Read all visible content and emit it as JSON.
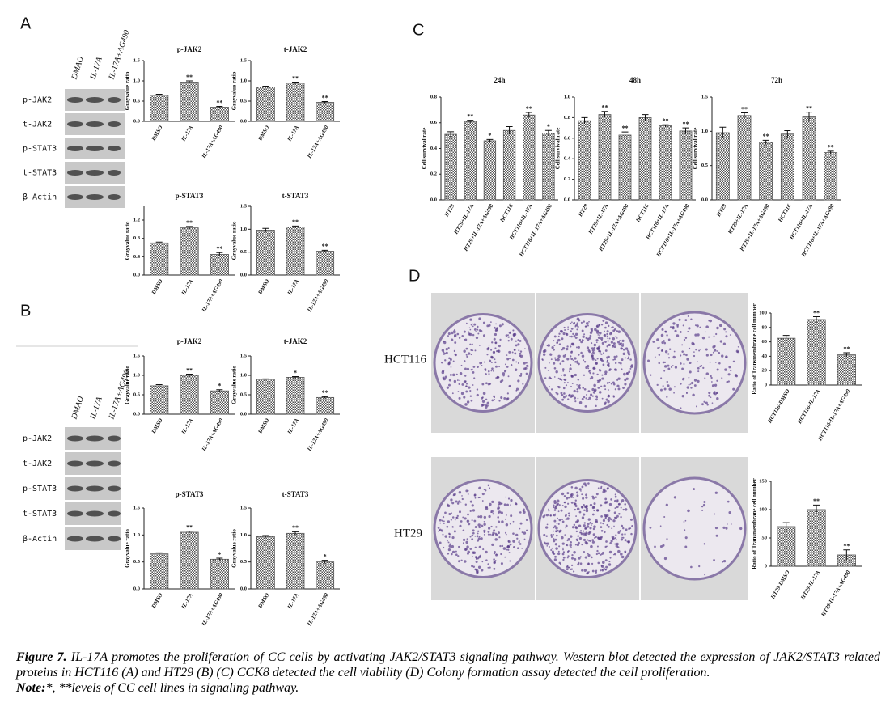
{
  "panel_labels": [
    "A",
    "B",
    "C",
    "D"
  ],
  "blots": [
    {
      "lanes": [
        "DMAO",
        "IL-17A",
        "IL-17A+AG490"
      ],
      "rows": [
        "p-JAK2",
        "t-JAK2",
        "p-STAT3",
        "t-STAT3",
        "β-Actin"
      ]
    },
    {
      "lanes": [
        "DMAO",
        "IL-17A",
        "IL-17A+AG490"
      ],
      "rows": [
        "p-JAK2",
        "t-JAK2",
        "p-STAT3",
        "t-STAT3",
        "β-Actin"
      ]
    }
  ],
  "colony_rows": [
    "HCT116",
    "HT29"
  ],
  "caption": {
    "label": "Figure 7.",
    "text": "IL-17A promotes the proliferation of CC cells by activating JAK2/STAT3 signaling pathway. Western blot detected the expression of JAK2/STAT3 related proteins in HCT116 (A) and HT29 (B) (C) CCK8 detected the cell viability (D) Colony formation assay detected the cell proliferation.",
    "note_label": "Note:",
    "note_text": "*, **levels of CC cell lines in signaling pathway."
  },
  "chart_data": [
    {
      "type": "bar",
      "title": "p-JAK2",
      "y_label": "Grayvalue ratio",
      "categories": [
        "DMSO",
        "IL-17A",
        "IL-17A+AG490"
      ],
      "values": [
        0.65,
        0.97,
        0.35
      ],
      "errors": [
        0.02,
        0.03,
        0.02
      ],
      "significance": [
        null,
        "**",
        "**"
      ],
      "color": "#555555",
      "ylim": [
        0,
        1.5
      ],
      "yticks": [
        {
          "value": 0,
          "label": "0.0"
        },
        {
          "value": 0.5,
          "label": "0.5"
        },
        {
          "value": 1,
          "label": "1.0"
        },
        {
          "value": 1.5,
          "label": "1.5"
        }
      ]
    },
    {
      "type": "bar",
      "title": "t-JAK2",
      "y_label": "Grayvalue ratio",
      "categories": [
        "DMSO",
        "IL-17A",
        "IL-17A+AG490"
      ],
      "values": [
        0.85,
        0.95,
        0.47
      ],
      "errors": [
        0.02,
        0.02,
        0.02
      ],
      "significance": [
        null,
        "**",
        "**"
      ],
      "color": "#555555",
      "ylim": [
        0,
        1.5
      ],
      "yticks": [
        {
          "value": 0,
          "label": "0.0"
        },
        {
          "value": 0.5,
          "label": "0.5"
        },
        {
          "value": 1,
          "label": "1.0"
        },
        {
          "value": 1.5,
          "label": "1.5"
        }
      ]
    },
    {
      "type": "bar",
      "title": "p-STAT3",
      "y_label": "Grayvalue ratio",
      "categories": [
        "DMSO",
        "IL-17A",
        "IL-17A+AG490"
      ],
      "values": [
        0.7,
        1.03,
        0.45
      ],
      "errors": [
        0.02,
        0.03,
        0.04
      ],
      "significance": [
        null,
        "**",
        "**"
      ],
      "color": "#555555",
      "ylim": [
        0,
        1.5
      ],
      "yticks": [
        {
          "value": 0,
          "label": "0.0"
        },
        {
          "value": 0.4,
          "label": "0.4"
        },
        {
          "value": 0.8,
          "label": "0.8"
        },
        {
          "value": 1.2,
          "label": "1.2"
        }
      ]
    },
    {
      "type": "bar",
      "title": "t-STAT3",
      "y_label": "Grayvalue ratio",
      "categories": [
        "DMSO",
        "IL-17A",
        "IL-17A+AG490"
      ],
      "values": [
        0.98,
        1.05,
        0.52
      ],
      "errors": [
        0.04,
        0.02,
        0.02
      ],
      "significance": [
        null,
        "**",
        "**"
      ],
      "color": "#555555",
      "ylim": [
        0,
        1.5
      ],
      "yticks": [
        {
          "value": 0,
          "label": "0.0"
        },
        {
          "value": 0.5,
          "label": "0.5"
        },
        {
          "value": 1,
          "label": "1.0"
        },
        {
          "value": 1.5,
          "label": "1.5"
        }
      ]
    },
    {
      "type": "bar",
      "title": "p-JAK2",
      "y_label": "Grayvalue ratio",
      "categories": [
        "DMSO",
        "IL-17A",
        "IL-17A+AG490"
      ],
      "values": [
        0.73,
        1.0,
        0.6
      ],
      "errors": [
        0.03,
        0.03,
        0.03
      ],
      "significance": [
        null,
        "**",
        "*"
      ],
      "color": "#555555",
      "ylim": [
        0,
        1.5
      ],
      "yticks": [
        {
          "value": 0,
          "label": "0.0"
        },
        {
          "value": 0.5,
          "label": "0.5"
        },
        {
          "value": 1,
          "label": "1.0"
        },
        {
          "value": 1.5,
          "label": "1.5"
        }
      ]
    },
    {
      "type": "bar",
      "title": "t-JAK2",
      "y_label": "Grayvalue ratio",
      "categories": [
        "DMSO",
        "IL-17A",
        "IL-17A+AG490"
      ],
      "values": [
        0.9,
        0.95,
        0.43
      ],
      "errors": [
        0.01,
        0.02,
        0.02
      ],
      "significance": [
        null,
        "*",
        "**"
      ],
      "color": "#555555",
      "ylim": [
        0,
        1.5
      ],
      "yticks": [
        {
          "value": 0,
          "label": "0.0"
        },
        {
          "value": 0.5,
          "label": "0.5"
        },
        {
          "value": 1,
          "label": "1.0"
        },
        {
          "value": 1.5,
          "label": "1.5"
        }
      ]
    },
    {
      "type": "bar",
      "title": "p-STAT3",
      "y_label": "Grayvalue ratio",
      "categories": [
        "DMSO",
        "IL-17A",
        "IL-17A+AG490"
      ],
      "values": [
        0.65,
        1.05,
        0.55
      ],
      "errors": [
        0.02,
        0.02,
        0.02
      ],
      "significance": [
        null,
        "**",
        "*"
      ],
      "color": "#555555",
      "ylim": [
        0,
        1.5
      ],
      "yticks": [
        {
          "value": 0,
          "label": "0.0"
        },
        {
          "value": 0.5,
          "label": "0.5"
        },
        {
          "value": 1,
          "label": "1.0"
        },
        {
          "value": 1.5,
          "label": "1.5"
        }
      ]
    },
    {
      "type": "bar",
      "title": "t-STAT3",
      "y_label": "Grayvalue ratio",
      "categories": [
        "DMSO",
        "IL-17A",
        "IL-17A+AG490"
      ],
      "values": [
        0.97,
        1.03,
        0.5
      ],
      "errors": [
        0.02,
        0.03,
        0.03
      ],
      "significance": [
        null,
        "**",
        "*"
      ],
      "color": "#555555",
      "ylim": [
        0,
        1.5
      ],
      "yticks": [
        {
          "value": 0,
          "label": "0.0"
        },
        {
          "value": 0.5,
          "label": "0.5"
        },
        {
          "value": 1,
          "label": "1.0"
        },
        {
          "value": 1.5,
          "label": "1.5"
        }
      ]
    },
    {
      "type": "bar",
      "title": "24h",
      "y_label": "Cell survival rate",
      "categories": [
        "HT29",
        "HT29+IL-17A",
        "HT29+IL-17A+AG490",
        "HCT116",
        "HCT116+IL-17A",
        "HCT116+IL-17A+AG490"
      ],
      "values": [
        0.51,
        0.61,
        0.46,
        0.54,
        0.66,
        0.52
      ],
      "errors": [
        0.02,
        0.01,
        0.01,
        0.03,
        0.02,
        0.02
      ],
      "significance": [
        null,
        "**",
        "*",
        null,
        "**",
        "*"
      ],
      "color": "#555555",
      "ylim": [
        0,
        0.8
      ],
      "yticks": [
        {
          "value": 0,
          "label": "0.0"
        },
        0.2,
        0.4,
        0.6,
        0.8
      ]
    },
    {
      "type": "bar",
      "title": "48h",
      "y_label": "Cell survival rate",
      "categories": [
        "HT29",
        "HT29+IL-17A",
        "HT29+IL-17A+AG490",
        "HCT116",
        "HCT116+IL-17A",
        "HCT116+IL-17A+AG490"
      ],
      "values": [
        0.77,
        0.83,
        0.63,
        0.8,
        0.72,
        0.67
      ],
      "errors": [
        0.03,
        0.03,
        0.03,
        0.03,
        0.01,
        0.03
      ],
      "significance": [
        null,
        "**",
        "**",
        null,
        "**",
        "**"
      ],
      "color": "#555555",
      "ylim": [
        0,
        1
      ],
      "yticks": [
        {
          "value": 0,
          "label": "0.0"
        },
        0.2,
        0.4,
        0.6,
        0.8,
        {
          "value": 1,
          "label": "1.0"
        }
      ]
    },
    {
      "type": "bar",
      "title": "72h",
      "y_label": "Cell survival rate",
      "categories": [
        "HT29",
        "HT29+IL-17A",
        "HT29+IL-17A+AG490",
        "HCT116",
        "HCT116+IL-17A",
        "HCT116+IL-17A+AG490"
      ],
      "values": [
        0.98,
        1.23,
        0.84,
        0.96,
        1.21,
        0.69
      ],
      "errors": [
        0.08,
        0.04,
        0.03,
        0.05,
        0.07,
        0.02
      ],
      "significance": [
        null,
        "**",
        "**",
        null,
        "**",
        "**"
      ],
      "color": "#555555",
      "ylim": [
        0,
        1.5
      ],
      "yticks": [
        {
          "value": 0,
          "label": "0.0"
        },
        0.5,
        {
          "value": 1,
          "label": "1.0"
        },
        1.5
      ]
    },
    {
      "type": "bar",
      "title": null,
      "y_label": "Ratio of Transmembrane cell number",
      "categories": [
        "HCT116-DMSO",
        "HCT116-IL-17A",
        "HCT116-IL-17A+AG490"
      ],
      "values": [
        65,
        91,
        42
      ],
      "errors": [
        4,
        4,
        3
      ],
      "significance": [
        null,
        "**",
        "**"
      ],
      "color": "#555555",
      "ylim": [
        0,
        100
      ],
      "yticks": [
        0,
        20,
        40,
        60,
        80,
        100
      ]
    },
    {
      "type": "bar",
      "title": null,
      "y_label": "Ratio of Transmembrane cell number",
      "categories": [
        "HT29-DMSO",
        "HT29-IL-17A",
        "HT29-IL-17A+AG490"
      ],
      "values": [
        70,
        100,
        20
      ],
      "errors": [
        7,
        8,
        9
      ],
      "significance": [
        null,
        "**",
        "**"
      ],
      "color": "#555555",
      "ylim": [
        0,
        150
      ],
      "yticks": [
        0,
        50,
        100,
        150
      ]
    }
  ]
}
